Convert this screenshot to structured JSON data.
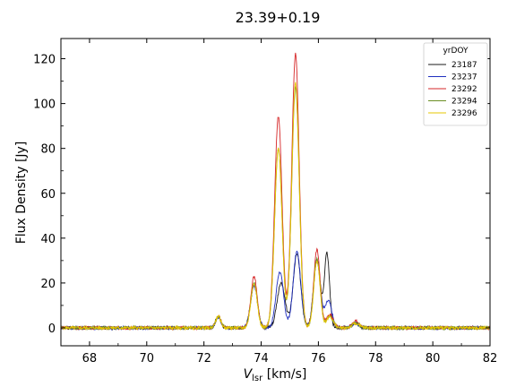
{
  "chart_data": {
    "type": "line",
    "title": "23.39+0.19",
    "xlabel_main": "V",
    "xlabel_sub": "lsr",
    "xlabel_unit": " [km/s]",
    "ylabel": "Flux Density [Jy]",
    "xlim": [
      67,
      82
    ],
    "ylim": [
      -8,
      129
    ],
    "xticks": [
      68,
      70,
      72,
      74,
      76,
      78,
      80,
      82
    ],
    "yticks": [
      0,
      20,
      40,
      60,
      80,
      100,
      120
    ],
    "legend": {
      "title": "yrDOY",
      "position": "top-right"
    },
    "series": [
      {
        "name": "23187",
        "color": "#1a1a1a",
        "peaks": [
          [
            72.5,
            5,
            0.09
          ],
          [
            73.75,
            19,
            0.12
          ],
          [
            74.7,
            20,
            0.14
          ],
          [
            75.25,
            33,
            0.13
          ],
          [
            75.95,
            30,
            0.12
          ],
          [
            76.3,
            33,
            0.09
          ],
          [
            77.3,
            2,
            0.12
          ]
        ]
      },
      {
        "name": "23237",
        "color": "#1f2fbf",
        "peaks": [
          [
            72.5,
            4.5,
            0.09
          ],
          [
            73.75,
            19,
            0.12
          ],
          [
            74.65,
            25,
            0.13
          ],
          [
            75.25,
            34,
            0.13
          ],
          [
            75.95,
            30,
            0.12
          ],
          [
            76.35,
            12,
            0.12
          ],
          [
            77.3,
            2,
            0.12
          ]
        ]
      },
      {
        "name": "23292",
        "color": "#d62728",
        "peaks": [
          [
            72.5,
            5.5,
            0.09
          ],
          [
            73.75,
            23,
            0.11
          ],
          [
            74.6,
            94,
            0.13
          ],
          [
            75.2,
            122,
            0.13
          ],
          [
            75.95,
            35,
            0.11
          ],
          [
            76.4,
            6,
            0.12
          ],
          [
            77.3,
            3,
            0.12
          ]
        ]
      },
      {
        "name": "23294",
        "color": "#6b8e23",
        "peaks": [
          [
            72.5,
            5,
            0.09
          ],
          [
            73.75,
            20,
            0.11
          ],
          [
            74.6,
            80,
            0.13
          ],
          [
            75.2,
            107,
            0.13
          ],
          [
            75.95,
            31,
            0.11
          ],
          [
            76.4,
            5,
            0.12
          ],
          [
            77.3,
            2,
            0.12
          ]
        ]
      },
      {
        "name": "23296",
        "color": "#e6c700",
        "peaks": [
          [
            72.5,
            5,
            0.09
          ],
          [
            73.75,
            20,
            0.11
          ],
          [
            74.6,
            80,
            0.13
          ],
          [
            75.2,
            109,
            0.13
          ],
          [
            75.95,
            30,
            0.11
          ],
          [
            76.4,
            5,
            0.12
          ],
          [
            77.3,
            2,
            0.12
          ]
        ]
      }
    ]
  }
}
